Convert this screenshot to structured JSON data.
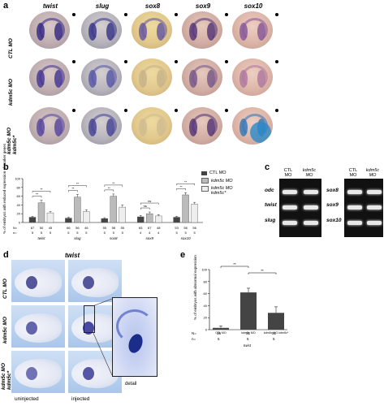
{
  "panel_a": {
    "label": "a",
    "columns": [
      "twist",
      "slug",
      "sox8",
      "sox9",
      "sox10"
    ],
    "rows": [
      "CTL MO",
      "kdm5c MO",
      "kdm5c MO\nkdm5c*"
    ]
  },
  "panel_b": {
    "label": "b",
    "ylabel": "% of embryos with reduced expression of marker genes",
    "legend": [
      "CTL MO",
      "kdm5c MO",
      "kdm5c MO\nkdm5c*"
    ],
    "n_label": "N=",
    "nn_label": "n=",
    "genes": [
      "twist",
      "slug",
      "sox8",
      "sox9",
      "sox10"
    ],
    "N_values": [
      [
        "67",
        "50",
        "45"
      ],
      [
        "66",
        "56",
        "46"
      ],
      [
        "55",
        "58",
        "55"
      ],
      [
        "65",
        "67",
        "48"
      ],
      [
        "53",
        "56",
        "56"
      ]
    ],
    "n_values": [
      [
        "5",
        "5",
        "5"
      ],
      [
        "5",
        "5",
        "5"
      ],
      [
        "5",
        "5",
        "5"
      ],
      [
        "4",
        "4",
        "4"
      ],
      [
        "5",
        "5",
        "5"
      ]
    ],
    "sig": [
      "**",
      "**",
      "**",
      "**",
      "**",
      "**",
      "ns",
      "ns",
      "**",
      "**"
    ]
  },
  "panel_c": {
    "label": "c",
    "headers_left": [
      "CTL MO",
      "kdm5c MO"
    ],
    "headers_right": [
      "CTL MO",
      "kdm5c MO"
    ],
    "genes_left": [
      "odc",
      "twist",
      "slug"
    ],
    "genes_right": [
      "sox8",
      "sox9",
      "sox10"
    ]
  },
  "panel_d": {
    "label": "d",
    "title": "twist",
    "rows": [
      "CTL MO",
      "kdm5c MO",
      "kdm5c MO\nkdm5c*"
    ],
    "detail_label": "detail",
    "bottom_left": "uninjected",
    "bottom_right": "injected"
  },
  "panel_e": {
    "label": "e",
    "ylabel": "% of embryos with abnormal expression",
    "gene": "twist",
    "n_label": "N=",
    "nn_label": "n=",
    "N_values": [
      "36",
      "31",
      "31"
    ],
    "n_values": [
      "5",
      "5",
      "5"
    ],
    "sig": [
      "**",
      "**"
    ]
  },
  "chart_data": [
    {
      "type": "bar",
      "categories": [
        "twist",
        "slug",
        "sox8",
        "sox9",
        "sox10"
      ],
      "series": [
        {
          "name": "CTL MO",
          "values": [
            12,
            10,
            9,
            13,
            12
          ]
        },
        {
          "name": "kdm5c MO",
          "values": [
            45,
            58,
            60,
            20,
            63
          ]
        },
        {
          "name": "kdm5c MO kdm5c*",
          "values": [
            22,
            25,
            35,
            15,
            42
          ]
        }
      ],
      "ylim": [
        0,
        100
      ],
      "yticks": [
        0,
        20,
        40,
        60,
        80,
        100
      ],
      "errors": [
        [
          2,
          2,
          2,
          3,
          2
        ],
        [
          6,
          6,
          5,
          4,
          5
        ],
        [
          3,
          4,
          5,
          3,
          4
        ]
      ],
      "colors": [
        "#444444",
        "#bbbbbb",
        "#eeeeee"
      ]
    },
    {
      "type": "bar",
      "categories": [
        "CTL MO",
        "kdm5c MO",
        "kdm5c MO kdm5c*"
      ],
      "values": [
        3,
        62,
        28
      ],
      "errors": [
        3,
        7,
        10
      ],
      "ylim": [
        0,
        100
      ],
      "yticks": [
        0,
        20,
        40,
        60,
        80,
        100
      ],
      "colors": [
        "#444444",
        "#444444",
        "#444444"
      ]
    }
  ]
}
